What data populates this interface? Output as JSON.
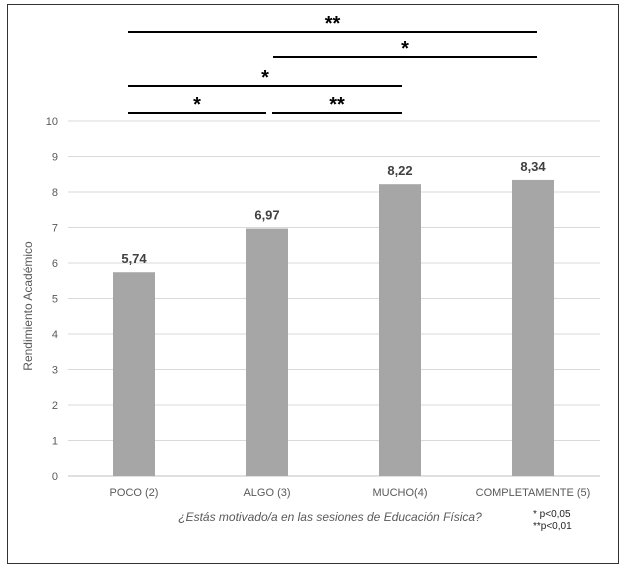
{
  "chart_data": {
    "type": "bar",
    "categories": [
      "POCO (2)",
      "ALGO (3)",
      "MUCHO(4)",
      "COMPLETAMENTE (5)"
    ],
    "values": [
      5.74,
      6.97,
      8.22,
      8.34
    ],
    "value_labels": [
      "5,74",
      "6,97",
      "8,22",
      "8,34"
    ],
    "xlabel": "¿Estás motivado/a en las sesiones de Educación Física?",
    "ylabel": "Rendimiento Académico",
    "ylim": [
      0,
      10
    ],
    "yticks": [
      "0",
      "1",
      "2",
      "3",
      "4",
      "5",
      "6",
      "7",
      "8",
      "9",
      "10"
    ],
    "grid": true,
    "bar_color": "#a6a6a6",
    "significance": [
      {
        "from": 0,
        "to": 3,
        "label": "**"
      },
      {
        "from": 2,
        "to": 3,
        "label": "*"
      },
      {
        "from": 0,
        "to": 2,
        "label": "*"
      },
      {
        "from": 0,
        "to": 1,
        "label": "*"
      },
      {
        "from": 1,
        "to": 2,
        "label": "**"
      }
    ],
    "legend_notes": [
      "* p<0,05",
      "**p<0,01"
    ]
  }
}
